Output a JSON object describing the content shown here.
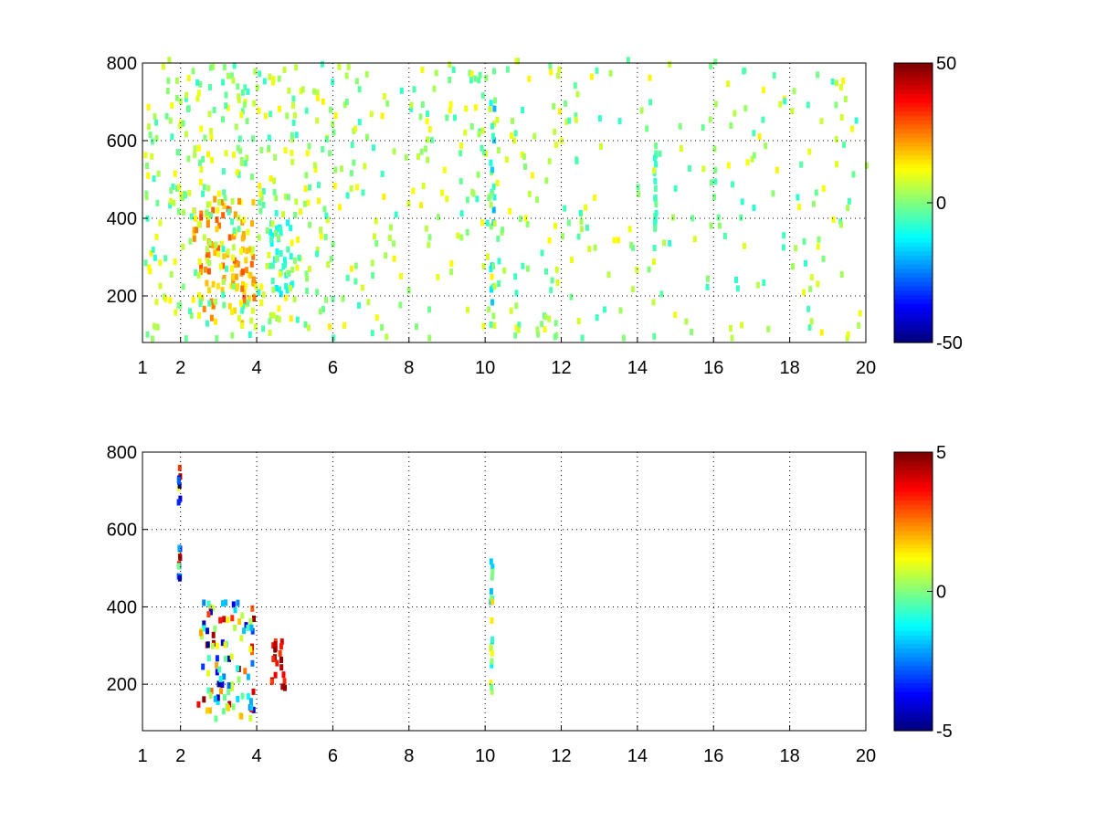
{
  "chart_data": [
    {
      "type": "heatmap",
      "title": "",
      "xlabel": "",
      "ylabel": "",
      "xlim": [
        1,
        20
      ],
      "ylim": [
        80,
        800
      ],
      "xticks": [
        "1",
        "2",
        "4",
        "6",
        "8",
        "10",
        "12",
        "14",
        "16",
        "18",
        "20"
      ],
      "xtick_values": [
        1,
        2,
        4,
        6,
        8,
        10,
        12,
        14,
        16,
        18,
        20
      ],
      "yticks": [
        "200",
        "400",
        "600",
        "800"
      ],
      "ytick_values": [
        200,
        400,
        600,
        800
      ],
      "grid": true,
      "grid_style": "dotted",
      "colormap": "jet",
      "clim": [
        -50,
        50
      ],
      "colorbar_ticks": [
        "-50",
        "0",
        "50"
      ],
      "colorbar_tick_values": [
        -50,
        0,
        50
      ],
      "notable_regions": [
        {
          "x": [
            2.3,
            4.0
          ],
          "y": [
            120,
            460
          ],
          "value_range": [
            10,
            30
          ],
          "description": "dense positive cluster"
        },
        {
          "x": [
            4.3,
            5.0
          ],
          "y": [
            180,
            400
          ],
          "value_range": [
            -15,
            -5
          ],
          "description": "negative cluster"
        },
        {
          "x": [
            10.1,
            10.3
          ],
          "y": [
            90,
            800
          ],
          "value_range": [
            -20,
            10
          ],
          "description": "vertical streak"
        },
        {
          "x": [
            14.4,
            14.5
          ],
          "y": [
            350,
            600
          ],
          "value_range": [
            -10,
            0
          ],
          "description": "vertical streak"
        }
      ]
    },
    {
      "type": "heatmap",
      "title": "",
      "xlabel": "",
      "ylabel": "",
      "xlim": [
        1,
        20
      ],
      "ylim": [
        80,
        800
      ],
      "xticks": [
        "1",
        "2",
        "4",
        "6",
        "8",
        "10",
        "12",
        "14",
        "16",
        "18",
        "20"
      ],
      "xtick_values": [
        1,
        2,
        4,
        6,
        8,
        10,
        12,
        14,
        16,
        18,
        20
      ],
      "yticks": [
        "200",
        "400",
        "600",
        "800"
      ],
      "ytick_values": [
        200,
        400,
        600,
        800
      ],
      "grid": true,
      "grid_style": "dotted",
      "colormap": "jet",
      "clim": [
        -5,
        5
      ],
      "colorbar_ticks": [
        "-5",
        "0",
        "5"
      ],
      "colorbar_tick_values": [
        -5,
        0,
        5
      ],
      "notable_regions": [
        {
          "x": [
            2.4,
            4.0
          ],
          "y": [
            100,
            420
          ],
          "value_range": [
            -5,
            5
          ],
          "description": "sparse mixed cluster"
        },
        {
          "x": [
            4.3,
            4.8
          ],
          "y": [
            180,
            350
          ],
          "value_range": [
            3,
            5
          ],
          "description": "positive cluster"
        },
        {
          "x": [
            10.1,
            10.2
          ],
          "y": [
            160,
            530
          ],
          "value_range": [
            -2,
            2
          ],
          "description": "vertical streak"
        },
        {
          "x": [
            1.9,
            2.0
          ],
          "y": [
            450,
            770
          ],
          "value_range": [
            -5,
            5
          ],
          "description": "thin vertical streak"
        }
      ]
    }
  ]
}
